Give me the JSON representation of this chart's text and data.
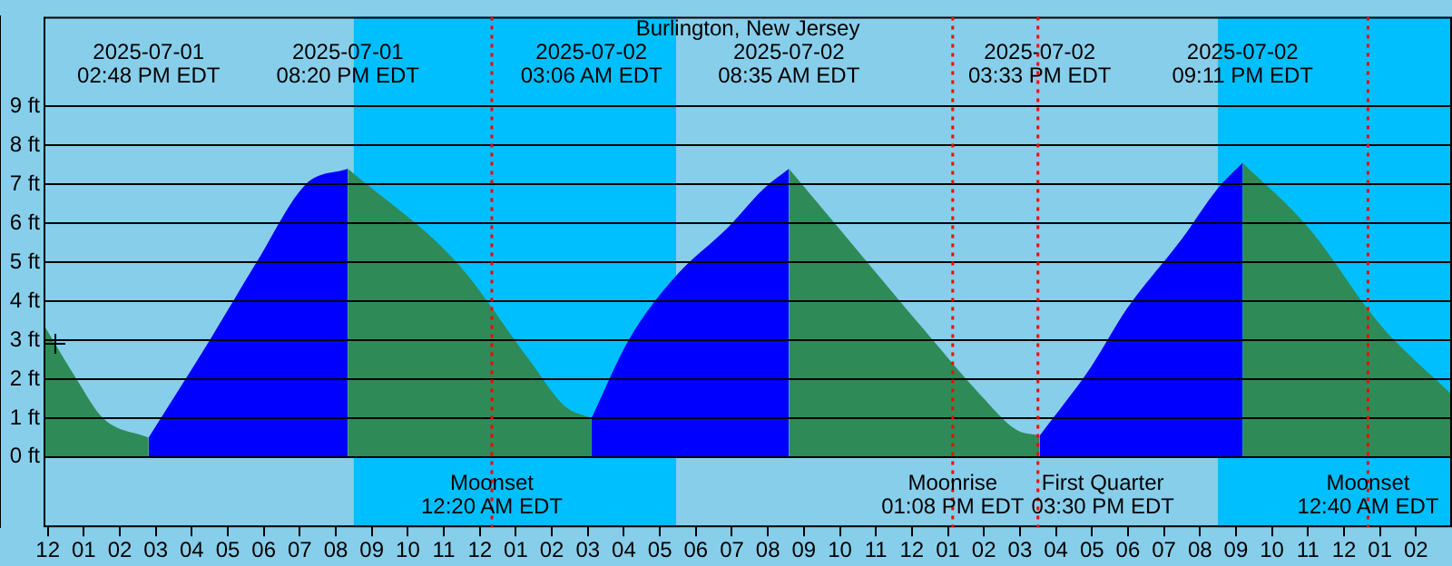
{
  "chart_data": {
    "type": "area",
    "title": "Burlington, New Jersey",
    "xlim": [
      "2025-07-01T11:53",
      "2025-07-03T03:00"
    ],
    "xticks": [
      {
        "value": "2025-07-01T12:00",
        "label": "12"
      },
      {
        "value": "2025-07-01T13:00",
        "label": "01"
      },
      {
        "value": "2025-07-01T14:00",
        "label": "02"
      },
      {
        "value": "2025-07-01T15:00",
        "label": "03"
      },
      {
        "value": "2025-07-01T16:00",
        "label": "04"
      },
      {
        "value": "2025-07-01T17:00",
        "label": "05"
      },
      {
        "value": "2025-07-01T18:00",
        "label": "06"
      },
      {
        "value": "2025-07-01T19:00",
        "label": "07"
      },
      {
        "value": "2025-07-01T20:00",
        "label": "08"
      },
      {
        "value": "2025-07-01T21:00",
        "label": "09"
      },
      {
        "value": "2025-07-01T22:00",
        "label": "10"
      },
      {
        "value": "2025-07-01T23:00",
        "label": "11"
      },
      {
        "value": "2025-07-02T00:00",
        "label": "12"
      },
      {
        "value": "2025-07-02T01:00",
        "label": "01"
      },
      {
        "value": "2025-07-02T02:00",
        "label": "02"
      },
      {
        "value": "2025-07-02T03:00",
        "label": "03"
      },
      {
        "value": "2025-07-02T04:00",
        "label": "04"
      },
      {
        "value": "2025-07-02T05:00",
        "label": "05"
      },
      {
        "value": "2025-07-02T06:00",
        "label": "06"
      },
      {
        "value": "2025-07-02T07:00",
        "label": "07"
      },
      {
        "value": "2025-07-02T08:00",
        "label": "08"
      },
      {
        "value": "2025-07-02T09:00",
        "label": "09"
      },
      {
        "value": "2025-07-02T10:00",
        "label": "10"
      },
      {
        "value": "2025-07-02T11:00",
        "label": "11"
      },
      {
        "value": "2025-07-02T12:00",
        "label": "12"
      },
      {
        "value": "2025-07-02T13:00",
        "label": "01"
      },
      {
        "value": "2025-07-02T14:00",
        "label": "02"
      },
      {
        "value": "2025-07-02T15:00",
        "label": "03"
      },
      {
        "value": "2025-07-02T16:00",
        "label": "04"
      },
      {
        "value": "2025-07-02T17:00",
        "label": "05"
      },
      {
        "value": "2025-07-02T18:00",
        "label": "06"
      },
      {
        "value": "2025-07-02T19:00",
        "label": "07"
      },
      {
        "value": "2025-07-02T20:00",
        "label": "08"
      },
      {
        "value": "2025-07-02T21:00",
        "label": "09"
      },
      {
        "value": "2025-07-02T22:00",
        "label": "10"
      },
      {
        "value": "2025-07-02T23:00",
        "label": "11"
      },
      {
        "value": "2025-07-03T00:00",
        "label": "12"
      },
      {
        "value": "2025-07-03T01:00",
        "label": "01"
      },
      {
        "value": "2025-07-03T02:00",
        "label": "02"
      }
    ],
    "ylim": [
      -1.8,
      11.3
    ],
    "yticks": [
      {
        "value": 0,
        "label": "0 ft"
      },
      {
        "value": 1,
        "label": "1 ft"
      },
      {
        "value": 2,
        "label": "2 ft"
      },
      {
        "value": 3,
        "label": "3 ft"
      },
      {
        "value": 4,
        "label": "4 ft"
      },
      {
        "value": 5,
        "label": "5 ft"
      },
      {
        "value": 6,
        "label": "6 ft"
      },
      {
        "value": 7,
        "label": "7 ft"
      },
      {
        "value": 8,
        "label": "8 ft"
      },
      {
        "value": 9,
        "label": "9 ft"
      }
    ],
    "grid": "y",
    "legend": false,
    "series": [
      {
        "color": "#2e8b57",
        "x": [
          "2025-07-01T11:53",
          "2025-07-01T12:48",
          "2025-07-01T13:32",
          "2025-07-01T14:48"
        ],
        "values": [
          3.4,
          2,
          1,
          0.5
        ]
      },
      {
        "color": "#0000ff",
        "x": [
          "2025-07-01T14:48",
          "2025-07-01T16:30",
          "2025-07-01T17:48",
          "2025-07-01T19:10",
          "2025-07-01T20:20"
        ],
        "values": [
          0.5,
          3,
          5,
          7,
          7.4
        ]
      },
      {
        "color": "#2e8b57",
        "x": [
          "2025-07-01T20:20",
          "2025-07-01T23:21",
          "2025-07-02T01:22",
          "2025-07-02T02:22",
          "2025-07-02T03:06"
        ],
        "values": [
          7.4,
          5,
          2.5,
          1.3,
          1
        ]
      },
      {
        "color": "#0000ff",
        "x": [
          "2025-07-02T03:06",
          "2025-07-02T04:08",
          "2025-07-02T05:24",
          "2025-07-02T06:54",
          "2025-07-02T07:54",
          "2025-07-02T08:35"
        ],
        "values": [
          1,
          3,
          4.6,
          5.9,
          6.9,
          7.4
        ]
      },
      {
        "color": "#2e8b57",
        "x": [
          "2025-07-02T08:35",
          "2025-07-02T10:24",
          "2025-07-02T12:24",
          "2025-07-02T13:54",
          "2025-07-02T14:54",
          "2025-07-02T15:33"
        ],
        "values": [
          7.4,
          5.4,
          3.2,
          1.6,
          0.7,
          0.55
        ]
      },
      {
        "color": "#0000ff",
        "x": [
          "2025-07-02T15:33",
          "2025-07-02T16:58",
          "2025-07-02T17:58",
          "2025-07-02T19:30",
          "2025-07-02T20:30",
          "2025-07-02T21:11"
        ],
        "values": [
          0.55,
          2.3,
          3.8,
          5.6,
          6.9,
          7.55
        ]
      },
      {
        "color": "#2e8b57",
        "x": [
          "2025-07-02T21:11",
          "2025-07-02T23:00",
          "2025-07-03T01:00",
          "2025-07-03T03:00"
        ],
        "values": [
          7.55,
          5.9,
          3.4,
          1.6
        ]
      }
    ],
    "bands": [
      {
        "axis": "x",
        "from": "2025-07-01T20:30",
        "to": "2025-07-02T05:27",
        "color": "#00bfff"
      },
      {
        "axis": "x",
        "from": "2025-07-02T20:30",
        "to": "2025-07-03T03:00",
        "color": "#00bfff"
      }
    ],
    "ref_lines": [
      {
        "axis": "x",
        "value": "2025-07-02T00:20",
        "label": "Moonset\n12:20 AM EDT",
        "color": "#ff0000",
        "line_style": "dotted"
      },
      {
        "axis": "x",
        "value": "2025-07-02T13:08",
        "label": "Moonrise\n01:08 PM EDT",
        "color": "#ff0000",
        "line_style": "dotted"
      },
      {
        "axis": "x",
        "value": "2025-07-02T15:30",
        "label": "First Quarter\n03:30 PM EDT",
        "color": "#ff0000",
        "line_style": "dotted"
      },
      {
        "axis": "x",
        "value": "2025-07-03T00:40",
        "label": "Moonset\n12:40 AM EDT",
        "color": "#ff0000",
        "line_style": "dotted"
      }
    ],
    "annotations": [
      "2025-07-01\n02:48 PM EDT",
      "2025-07-01\n08:20 PM EDT",
      "2025-07-02\n03:06 AM EDT",
      "2025-07-02\n08:35 AM EDT",
      "2025-07-02\n03:33 PM EDT",
      "2025-07-02\n09:11 PM EDT"
    ]
  }
}
